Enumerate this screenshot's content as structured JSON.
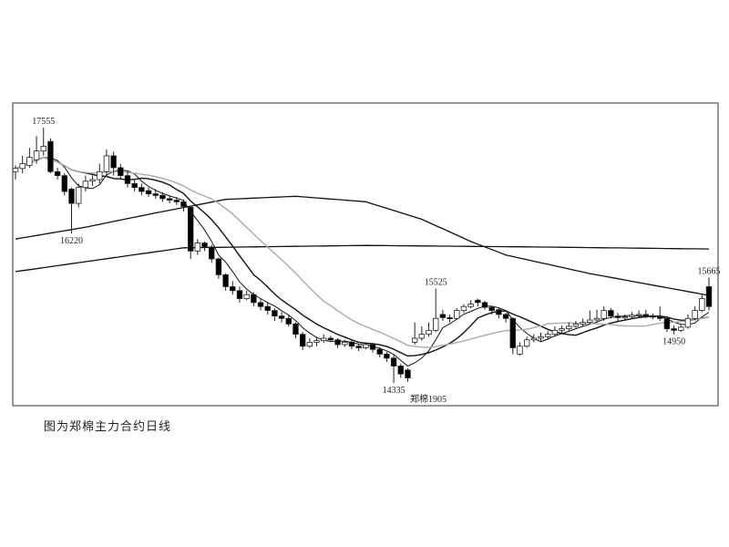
{
  "caption": "图为郑棉主力合约日线",
  "chart_data": {
    "type": "candlestick",
    "title": "",
    "xlabel": "",
    "ylabel": "",
    "ylim": [
      14050,
      17865
    ],
    "grid": false,
    "contract_label": "郑棉1905",
    "colors": {
      "up_fill": "#ffffff",
      "down_fill": "#000000",
      "line": "#111111",
      "ma_light": "#aaaaaa",
      "frame": "#555555"
    },
    "candles": [
      [
        17000,
        17080,
        16900,
        17040
      ],
      [
        17040,
        17200,
        16980,
        17100
      ],
      [
        17080,
        17300,
        17050,
        17180
      ],
      [
        17150,
        17450,
        17100,
        17260
      ],
      [
        17260,
        17555,
        17200,
        17320
      ],
      [
        17380,
        17420,
        16980,
        17000
      ],
      [
        17000,
        17050,
        16900,
        16950
      ],
      [
        16950,
        16980,
        16700,
        16750
      ],
      [
        16780,
        16800,
        16220,
        16600
      ],
      [
        16600,
        16850,
        16550,
        16800
      ],
      [
        16800,
        16950,
        16750,
        16880
      ],
      [
        16880,
        16950,
        16820,
        16900
      ],
      [
        16900,
        17100,
        16850,
        17000
      ],
      [
        17000,
        17280,
        16950,
        17200
      ],
      [
        17200,
        17250,
        16950,
        17050
      ],
      [
        17050,
        17100,
        16900,
        16950
      ],
      [
        16950,
        17000,
        16800,
        16850
      ],
      [
        16850,
        16900,
        16750,
        16800
      ],
      [
        16800,
        16850,
        16700,
        16750
      ],
      [
        16760,
        16800,
        16680,
        16720
      ],
      [
        16720,
        16780,
        16660,
        16700
      ],
      [
        16700,
        16740,
        16620,
        16660
      ],
      [
        16660,
        16700,
        16600,
        16640
      ],
      [
        16640,
        16680,
        16580,
        16620
      ],
      [
        16620,
        16650,
        16500,
        16560
      ],
      [
        16550,
        16560,
        15900,
        16000
      ],
      [
        16000,
        16150,
        15950,
        16100
      ],
      [
        16100,
        16120,
        16000,
        16050
      ],
      [
        16050,
        16080,
        15850,
        15900
      ],
      [
        15900,
        15920,
        15650,
        15700
      ],
      [
        15700,
        15720,
        15500,
        15550
      ],
      [
        15550,
        15620,
        15450,
        15500
      ],
      [
        15500,
        15550,
        15350,
        15400
      ],
      [
        15400,
        15500,
        15380,
        15450
      ],
      [
        15450,
        15480,
        15300,
        15350
      ],
      [
        15350,
        15400,
        15250,
        15300
      ],
      [
        15300,
        15350,
        15200,
        15250
      ],
      [
        15250,
        15280,
        15120,
        15180
      ],
      [
        15180,
        15230,
        15100,
        15150
      ],
      [
        15150,
        15200,
        15050,
        15080
      ],
      [
        15080,
        15100,
        14900,
        14950
      ],
      [
        14950,
        14980,
        14750,
        14800
      ],
      [
        14800,
        14900,
        14780,
        14850
      ],
      [
        14850,
        14920,
        14800,
        14870
      ],
      [
        14870,
        14950,
        14840,
        14900
      ],
      [
        14900,
        14930,
        14850,
        14880
      ],
      [
        14880,
        14900,
        14780,
        14820
      ],
      [
        14820,
        14880,
        14790,
        14850
      ],
      [
        14850,
        14870,
        14760,
        14800
      ],
      [
        14800,
        14830,
        14740,
        14780
      ],
      [
        14780,
        14850,
        14760,
        14820
      ],
      [
        14820,
        14840,
        14720,
        14760
      ],
      [
        14760,
        14790,
        14660,
        14700
      ],
      [
        14700,
        14730,
        14600,
        14650
      ],
      [
        14650,
        14700,
        14335,
        14550
      ],
      [
        14550,
        14580,
        14400,
        14450
      ],
      [
        14500,
        14520,
        14350,
        14400
      ],
      [
        14850,
        15100,
        14820,
        14900
      ],
      [
        14900,
        15050,
        14870,
        14950
      ],
      [
        14950,
        15100,
        14920,
        15000
      ],
      [
        15000,
        15525,
        14980,
        15150
      ],
      [
        15200,
        15260,
        15120,
        15160
      ],
      [
        15160,
        15200,
        15100,
        15150
      ],
      [
        15150,
        15280,
        15130,
        15250
      ],
      [
        15250,
        15330,
        15220,
        15300
      ],
      [
        15300,
        15380,
        15280,
        15330
      ],
      [
        15380,
        15400,
        15300,
        15350
      ],
      [
        15350,
        15370,
        15260,
        15290
      ],
      [
        15290,
        15300,
        15200,
        15250
      ],
      [
        15260,
        15280,
        15150,
        15200
      ],
      [
        15200,
        15220,
        15100,
        15150
      ],
      [
        15150,
        15160,
        14700,
        14780
      ],
      [
        14700,
        14850,
        14680,
        14800
      ],
      [
        14800,
        14920,
        14780,
        14880
      ],
      [
        14880,
        14950,
        14850,
        14900
      ],
      [
        14900,
        14970,
        14860,
        14920
      ],
      [
        14920,
        14990,
        14880,
        14950
      ],
      [
        14950,
        15050,
        14920,
        15000
      ],
      [
        15000,
        15060,
        14970,
        15020
      ],
      [
        15020,
        15100,
        14990,
        15050
      ],
      [
        15050,
        15120,
        15030,
        15080
      ],
      [
        15080,
        15150,
        15050,
        15100
      ],
      [
        15100,
        15250,
        15080,
        15130
      ],
      [
        15130,
        15260,
        15100,
        15150
      ],
      [
        15150,
        15300,
        15120,
        15250
      ],
      [
        15250,
        15280,
        15150,
        15180
      ],
      [
        15180,
        15220,
        15120,
        15160
      ],
      [
        15160,
        15200,
        15130,
        15170
      ],
      [
        15170,
        15230,
        15150,
        15190
      ],
      [
        15190,
        15250,
        15170,
        15200
      ],
      [
        15200,
        15260,
        15150,
        15180
      ],
      [
        15180,
        15210,
        15140,
        15170
      ],
      [
        15170,
        15300,
        15120,
        15150
      ],
      [
        15150,
        15170,
        14980,
        15020
      ],
      [
        15020,
        15060,
        14950,
        15000
      ],
      [
        15000,
        15080,
        14980,
        15040
      ],
      [
        15040,
        15200,
        15020,
        15150
      ],
      [
        15150,
        15300,
        15130,
        15250
      ],
      [
        15250,
        15450,
        15230,
        15400
      ],
      [
        15550,
        15665,
        15250,
        15300
      ]
    ],
    "moving_averages_short": [
      5,
      10,
      20
    ],
    "long_lines": [
      {
        "points": [
          [
            0,
            16150
          ],
          [
            10,
            16300
          ],
          [
            20,
            16480
          ],
          [
            30,
            16650
          ],
          [
            40,
            16690
          ],
          [
            50,
            16620
          ],
          [
            58,
            16400
          ],
          [
            65,
            16120
          ],
          [
            70,
            15950
          ],
          [
            82,
            15715
          ],
          [
            99,
            15440
          ]
        ]
      },
      {
        "points": [
          [
            0,
            15740
          ],
          [
            12,
            15890
          ],
          [
            24,
            16040
          ],
          [
            50,
            16070
          ],
          [
            75,
            16050
          ],
          [
            99,
            16025
          ]
        ]
      }
    ],
    "annotations": [
      {
        "index": 4,
        "text": "17555",
        "pos": "above"
      },
      {
        "index": 8,
        "text": "16220",
        "pos": "below"
      },
      {
        "index": 54,
        "text": "14335",
        "pos": "below"
      },
      {
        "index": 60,
        "text": "15525",
        "pos": "above"
      },
      {
        "index": 94,
        "text": "14950",
        "pos": "below"
      },
      {
        "index": 99,
        "text": "15665",
        "pos": "above"
      }
    ]
  }
}
